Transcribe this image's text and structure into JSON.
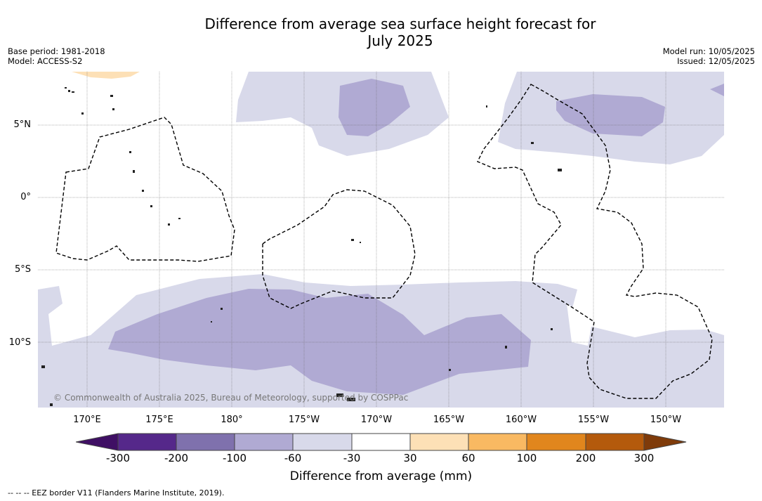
{
  "title_line1": "Difference from average sea surface height forecast for",
  "title_line2": "July 2025",
  "meta_left": {
    "base_period": "Base period: 1981-2018",
    "model": "Model: ACCESS-S2"
  },
  "meta_right": {
    "model_run": "Model run: 10/05/2025",
    "issued": "Issued: 12/05/2025"
  },
  "lat_labels": [
    "5°N",
    "0°",
    "5°S",
    "10°S"
  ],
  "lon_labels": [
    "170°E",
    "175°E",
    "180°",
    "175°W",
    "170°W",
    "165°W",
    "160°W",
    "155°W",
    "150°W"
  ],
  "copyright": "© Commonwealth of Australia 2025, Bureau of Meteorology, supported by COSPPac",
  "colorbar": {
    "ticks": [
      "-300",
      "-200",
      "-100",
      "-60",
      "-30",
      "30",
      "60",
      "100",
      "200",
      "300"
    ],
    "colors": [
      "#3f0f64",
      "#55288a",
      "#7f71ad",
      "#b0aad3",
      "#d8d9ea",
      "#ffffff",
      "#fde0b6",
      "#f9b962",
      "#e1861d",
      "#b45a0c",
      "#7f3b0a"
    ],
    "label": "Difference from average (mm)"
  },
  "footnote": "--  --  -- EEZ border V11 (Flanders Marine Institute, 2019)."
}
